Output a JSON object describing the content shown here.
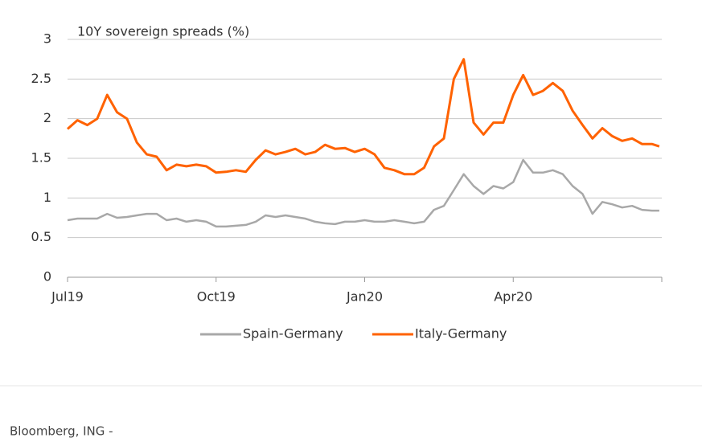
{
  "chart_data": {
    "type": "line",
    "title": "10Y sovereign spreads (%)",
    "source": "Bloomberg, ING -",
    "x": [
      0,
      0.2,
      0.4,
      0.6,
      0.8,
      1.0,
      1.2,
      1.4,
      1.6,
      1.8,
      2.0,
      2.2,
      2.4,
      2.6,
      2.8,
      3.0,
      3.2,
      3.4,
      3.6,
      3.8,
      4.0,
      4.2,
      4.4,
      4.6,
      4.8,
      5.0,
      5.2,
      5.4,
      5.6,
      5.8,
      6.0,
      6.2,
      6.4,
      6.6,
      6.8,
      7.0,
      7.2,
      7.4,
      7.6,
      7.8,
      8.0,
      8.2,
      8.4,
      8.6,
      8.8,
      9.0,
      9.2,
      9.4,
      9.6,
      9.8,
      10.0,
      10.2,
      10.4,
      10.6,
      10.8,
      11.0,
      11.2,
      11.4,
      11.6,
      11.8,
      11.95
    ],
    "series": [
      {
        "name": "Spain-Germany",
        "color": "#a8a8a8",
        "values": [
          0.72,
          0.74,
          0.74,
          0.74,
          0.8,
          0.75,
          0.76,
          0.78,
          0.8,
          0.8,
          0.72,
          0.74,
          0.7,
          0.72,
          0.7,
          0.64,
          0.64,
          0.65,
          0.66,
          0.7,
          0.78,
          0.76,
          0.78,
          0.76,
          0.74,
          0.7,
          0.68,
          0.67,
          0.7,
          0.7,
          0.72,
          0.7,
          0.7,
          0.72,
          0.7,
          0.68,
          0.7,
          0.85,
          0.9,
          1.1,
          1.3,
          1.15,
          1.05,
          1.15,
          1.12,
          1.2,
          1.48,
          1.32,
          1.32,
          1.35,
          1.3,
          1.15,
          1.05,
          0.8,
          0.95,
          0.92,
          0.88,
          0.9,
          0.85,
          0.84,
          0.84
        ]
      },
      {
        "name": "Italy-Germany",
        "color": "#ff6200",
        "values": [
          1.87,
          1.98,
          1.92,
          2.0,
          2.3,
          2.08,
          2.0,
          1.7,
          1.55,
          1.52,
          1.35,
          1.42,
          1.4,
          1.42,
          1.4,
          1.32,
          1.33,
          1.35,
          1.33,
          1.48,
          1.6,
          1.55,
          1.58,
          1.62,
          1.55,
          1.58,
          1.67,
          1.62,
          1.63,
          1.58,
          1.62,
          1.55,
          1.38,
          1.35,
          1.3,
          1.3,
          1.38,
          1.65,
          1.75,
          2.5,
          2.75,
          1.95,
          1.8,
          1.95,
          1.95,
          2.3,
          2.55,
          2.3,
          2.35,
          2.45,
          2.35,
          2.1,
          1.92,
          1.75,
          1.88,
          1.78,
          1.72,
          1.75,
          1.68,
          1.68,
          1.65
        ]
      }
    ],
    "xlim": [
      0,
      12
    ],
    "xticks": [
      {
        "value": 0,
        "label": "Jul19"
      },
      {
        "value": 3,
        "label": "Oct19"
      },
      {
        "value": 6,
        "label": "Jan20"
      },
      {
        "value": 9,
        "label": "Apr20"
      }
    ],
    "ylim": [
      0,
      3
    ],
    "yticks": [
      0,
      0.5,
      1,
      1.5,
      2,
      2.5,
      3
    ],
    "grid": true,
    "legend": "bottom"
  }
}
